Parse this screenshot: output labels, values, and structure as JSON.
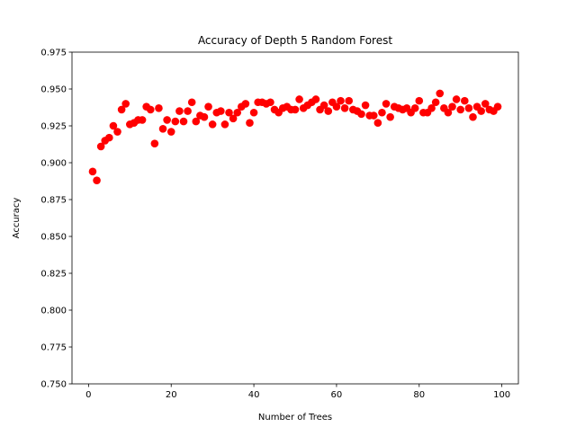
{
  "chart_data": {
    "type": "scatter",
    "title": "Accuracy of Depth 5 Random Forest",
    "xlabel": "Number of Trees",
    "ylabel": "Accuracy",
    "xlim": [
      -4,
      104
    ],
    "ylim": [
      0.75,
      0.975
    ],
    "xticks": [
      0,
      20,
      40,
      60,
      80,
      100
    ],
    "yticks": [
      0.75,
      0.775,
      0.8,
      0.825,
      0.85,
      0.875,
      0.9,
      0.925,
      0.95,
      0.975
    ],
    "xtick_labels": [
      "0",
      "20",
      "40",
      "60",
      "80",
      "100"
    ],
    "ytick_labels": [
      "0.750",
      "0.775",
      "0.800",
      "0.825",
      "0.850",
      "0.875",
      "0.900",
      "0.925",
      "0.950",
      "0.975"
    ],
    "grid": false,
    "marker_color": "#ff0000",
    "x": [
      1,
      2,
      3,
      4,
      5,
      6,
      7,
      8,
      9,
      10,
      11,
      12,
      13,
      14,
      15,
      16,
      17,
      18,
      19,
      20,
      21,
      22,
      23,
      24,
      25,
      26,
      27,
      28,
      29,
      30,
      31,
      32,
      33,
      34,
      35,
      36,
      37,
      38,
      39,
      40,
      41,
      42,
      43,
      44,
      45,
      46,
      47,
      48,
      49,
      50,
      51,
      52,
      53,
      54,
      55,
      56,
      57,
      58,
      59,
      60,
      61,
      62,
      63,
      64,
      65,
      66,
      67,
      68,
      69,
      70,
      71,
      72,
      73,
      74,
      75,
      76,
      77,
      78,
      79,
      80,
      81,
      82,
      83,
      84,
      85,
      86,
      87,
      88,
      89,
      90,
      91,
      92,
      93,
      94,
      95,
      96,
      97,
      98,
      99
    ],
    "y": [
      0.894,
      0.888,
      0.911,
      0.915,
      0.917,
      0.925,
      0.921,
      0.936,
      0.94,
      0.926,
      0.927,
      0.929,
      0.929,
      0.938,
      0.936,
      0.913,
      0.937,
      0.923,
      0.929,
      0.921,
      0.928,
      0.935,
      0.928,
      0.935,
      0.941,
      0.928,
      0.932,
      0.931,
      0.938,
      0.926,
      0.934,
      0.935,
      0.926,
      0.934,
      0.93,
      0.934,
      0.938,
      0.94,
      0.927,
      0.934,
      0.941,
      0.941,
      0.94,
      0.941,
      0.936,
      0.934,
      0.937,
      0.938,
      0.936,
      0.936,
      0.943,
      0.937,
      0.939,
      0.941,
      0.943,
      0.936,
      0.939,
      0.935,
      0.941,
      0.938,
      0.942,
      0.937,
      0.942,
      0.936,
      0.935,
      0.933,
      0.939,
      0.932,
      0.932,
      0.927,
      0.934,
      0.94,
      0.931,
      0.938,
      0.937,
      0.936,
      0.937,
      0.934,
      0.937,
      0.942,
      0.934,
      0.934,
      0.937,
      0.941,
      0.947,
      0.937,
      0.934,
      0.938,
      0.943,
      0.936,
      0.942,
      0.937,
      0.931,
      0.938,
      0.935,
      0.94,
      0.936,
      0.935,
      0.938
    ]
  }
}
